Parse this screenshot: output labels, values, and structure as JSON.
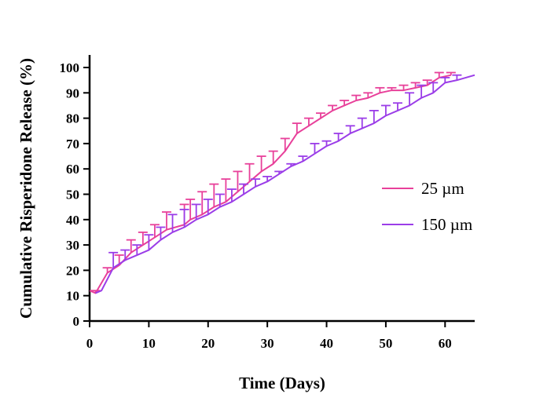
{
  "chart_data": {
    "type": "line",
    "title": "",
    "xlabel": "Time (Days)",
    "ylabel": "Cumulative Risperidone Release (%)",
    "xlim": [
      0,
      65
    ],
    "ylim": [
      0,
      105
    ],
    "xticks": [
      0,
      10,
      20,
      30,
      40,
      50,
      60
    ],
    "yticks": [
      0,
      10,
      20,
      30,
      40,
      50,
      60,
      70,
      80,
      90,
      100
    ],
    "grid": false,
    "legend_position": "right",
    "error_bars": "upper",
    "series": [
      {
        "name": "25 µm",
        "color": "#e8409a",
        "x": [
          0,
          1,
          3,
          5,
          7,
          9,
          11,
          13,
          16,
          17,
          19,
          21,
          23,
          25,
          27,
          29,
          31,
          33,
          35,
          37,
          39,
          41,
          43,
          45,
          47,
          49,
          51,
          53,
          55,
          57,
          59,
          61
        ],
        "y": [
          12,
          11,
          19,
          22,
          27,
          30,
          33,
          36,
          38,
          40,
          42,
          45,
          47,
          51,
          55,
          59,
          62,
          67,
          74,
          77,
          80,
          83,
          85,
          87,
          88,
          90,
          91,
          91,
          92,
          93,
          96,
          97
        ],
        "err": [
          0,
          1,
          2,
          4,
          5,
          5,
          5,
          7,
          8,
          8,
          9,
          9,
          9,
          8,
          7,
          6,
          5,
          5,
          4,
          3,
          2,
          2,
          2,
          2,
          2,
          2,
          1,
          2,
          2,
          2,
          2,
          1
        ]
      },
      {
        "name": "150 µm",
        "color": "#9b3de8",
        "x": [
          1,
          2,
          4,
          6,
          8,
          10,
          12,
          14,
          16,
          18,
          20,
          22,
          24,
          26,
          28,
          30,
          32,
          34,
          36,
          38,
          40,
          42,
          44,
          46,
          48,
          50,
          52,
          54,
          56,
          58,
          60,
          62,
          65
        ],
        "y": [
          11,
          12,
          21,
          24,
          26,
          28,
          32,
          35,
          37,
          40,
          42,
          45,
          47,
          50,
          53,
          55,
          58,
          61,
          63,
          66,
          69,
          71,
          74,
          76,
          78,
          81,
          83,
          85,
          88,
          90,
          94,
          95,
          97
        ],
        "err": [
          0,
          0,
          6,
          4,
          4,
          6,
          5,
          7,
          7,
          6,
          6,
          5,
          5,
          4,
          3,
          2,
          1,
          1,
          2,
          4,
          2,
          3,
          3,
          4,
          5,
          4,
          3,
          5,
          5,
          4,
          2,
          2,
          0
        ]
      }
    ]
  }
}
